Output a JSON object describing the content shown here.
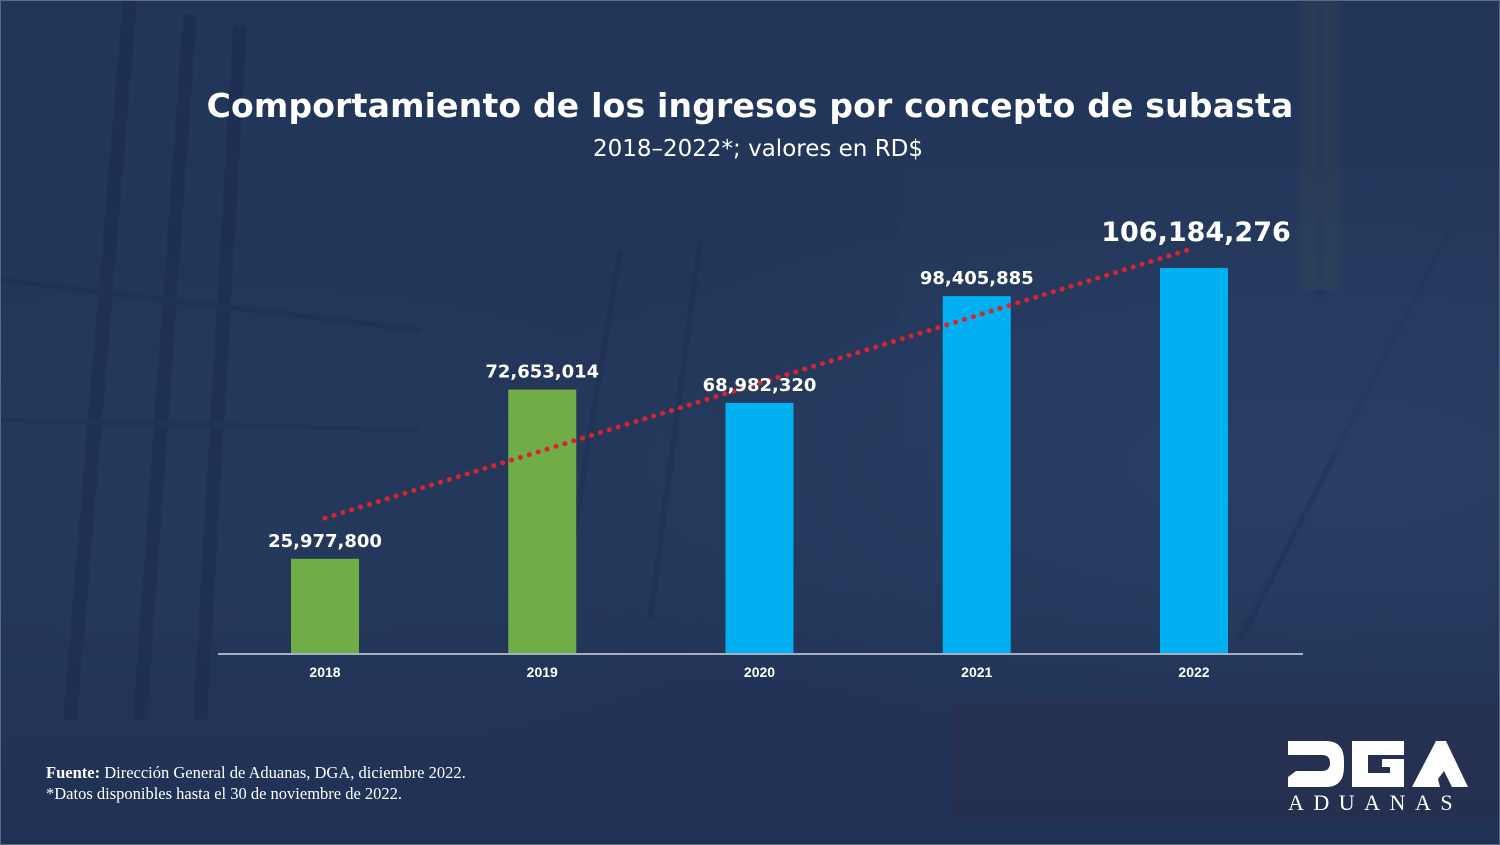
{
  "title": "Comportamiento de los ingresos por concepto de subasta",
  "subtitle": "2018–2022*; valores en RD$",
  "colors": {
    "background": "#223659",
    "bar_green": "#70AD47",
    "bar_blue": "#00B0F0",
    "trendline": "#D9232E",
    "axis": "#A6AFC0",
    "text": "#FFFFFF"
  },
  "chart_data": {
    "type": "bar",
    "title": "Comportamiento de los ingresos por concepto de subasta",
    "subtitle": "2018–2022*; valores en RD$",
    "xlabel": "",
    "ylabel": "",
    "categories": [
      "2018",
      "2019",
      "2020",
      "2021",
      "2022"
    ],
    "values": [
      25977800,
      72653014,
      68982320,
      98405885,
      106184276
    ],
    "value_labels": [
      "25,977,800",
      "72,653,014",
      "68,982,320",
      "98,405,885",
      "106,184,276"
    ],
    "bar_colors": [
      "#70AD47",
      "#70AD47",
      "#00B0F0",
      "#00B0F0",
      "#00B0F0"
    ],
    "highlight_last_label": true,
    "trendline": {
      "type": "linear",
      "style": "dotted",
      "color": "#D9232E"
    },
    "ylim": [
      0,
      110000000
    ],
    "y_axis_visible": false,
    "grid": false,
    "legend": "none"
  },
  "footnote": {
    "source_label": "Fuente:",
    "source_text": " Dirección General de Aduanas, DGA, diciembre 2022.",
    "note": "*Datos disponibles hasta el 30 de noviembre de 2022."
  },
  "logo": {
    "mark": "DGA",
    "text": "ADUANAS"
  }
}
